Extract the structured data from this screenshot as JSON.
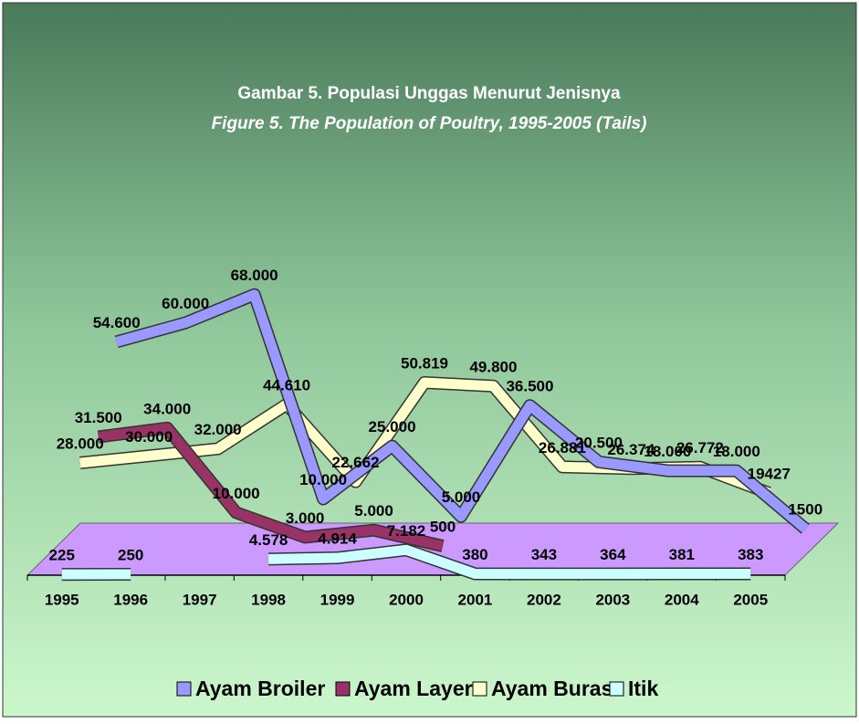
{
  "chart_data": {
    "type": "line",
    "title": "Gambar 5. Populasi Unggas Menurut Jenisnya",
    "subtitle": "Figure 5.   The Population of Poultry, 1995-2005 (Tails)",
    "categories": [
      "1995",
      "1996",
      "1997",
      "1998",
      "1999",
      "2000",
      "2001",
      "2002",
      "2003",
      "2004",
      "2005"
    ],
    "ylim": [
      0,
      70000
    ],
    "legend": "bottom",
    "series": [
      {
        "name": "Ayam Broiler",
        "color": "#9999ff",
        "values": [
          54600,
          60000,
          68000,
          10000,
          25000,
          5000,
          36500,
          20500,
          18000,
          18000,
          1500
        ],
        "value_labels": [
          "54.600",
          "60.000",
          "68.000",
          "10.000",
          "25.000",
          "5.000",
          "36.500",
          "20.500",
          "18.000",
          "18.000",
          "1500"
        ]
      },
      {
        "name": "Ayam Layer",
        "color": "#993366",
        "values": [
          31500,
          34000,
          10000,
          3000,
          5000,
          500,
          null,
          null,
          null,
          null,
          null
        ],
        "value_labels": [
          "31.500",
          "34.000",
          "10.000",
          "3.000",
          "5.000",
          "500",
          null,
          null,
          null,
          null,
          null
        ]
      },
      {
        "name": "Ayam Buras",
        "color": "#ffffcc",
        "values": [
          28000,
          30000,
          32000,
          44610,
          22662,
          50819,
          49800,
          26881,
          26374,
          26772,
          19427
        ],
        "value_labels": [
          "28.000",
          "30.000",
          "32.000",
          "44.610",
          "22.662",
          "50.819",
          "49.800",
          "26.881",
          "26.374",
          "26.772",
          "19427"
        ]
      },
      {
        "name": "Itik",
        "color": "#ccffff",
        "values": [
          225,
          250,
          null,
          4578,
          4914,
          7182,
          380,
          343,
          364,
          381,
          383
        ],
        "value_labels": [
          "225",
          "250",
          null,
          "4.578",
          "4.914",
          "7.182",
          "380",
          "343",
          "364",
          "381",
          "383"
        ]
      }
    ]
  }
}
